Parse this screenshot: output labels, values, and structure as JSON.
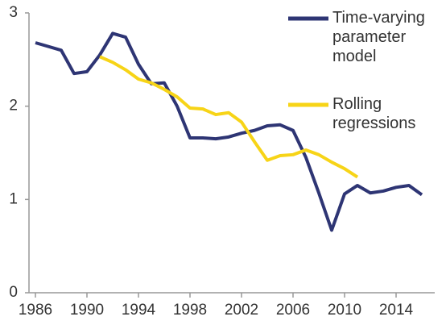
{
  "chart_data": {
    "type": "line",
    "x": [
      1986,
      1987,
      1988,
      1989,
      1990,
      1991,
      1992,
      1993,
      1994,
      1995,
      1996,
      1997,
      1998,
      1999,
      2000,
      2001,
      2002,
      2003,
      2004,
      2005,
      2006,
      2007,
      2008,
      2009,
      2010,
      2011,
      2012,
      2013,
      2014,
      2015,
      2016
    ],
    "series": [
      {
        "name": "Time-varying parameter model",
        "color": "#2e3574",
        "values": [
          2.68,
          2.64,
          2.6,
          2.35,
          2.37,
          2.55,
          2.78,
          2.74,
          2.45,
          2.24,
          2.25,
          2.0,
          1.66,
          1.66,
          1.65,
          1.67,
          1.71,
          1.74,
          1.79,
          1.8,
          1.74,
          1.45,
          1.07,
          0.67,
          1.06,
          1.15,
          1.07,
          1.09,
          1.13,
          1.15,
          1.05
        ]
      },
      {
        "name": "Rolling regressions",
        "color": "#f7d417",
        "values": [
          null,
          null,
          null,
          null,
          null,
          2.53,
          2.47,
          2.39,
          2.29,
          2.25,
          2.18,
          2.1,
          1.98,
          1.97,
          1.91,
          1.93,
          1.83,
          1.62,
          1.42,
          1.47,
          1.48,
          1.53,
          1.48,
          1.4,
          1.33,
          1.24,
          null,
          null,
          null,
          null,
          null
        ]
      }
    ],
    "xlim": [
      1985.5,
      2017
    ],
    "xticks": [
      1986,
      1990,
      1994,
      1998,
      2002,
      2006,
      2010,
      2014
    ],
    "ylim": [
      0,
      3
    ],
    "yticks": [
      0,
      1,
      2,
      3
    ],
    "grid": false
  }
}
